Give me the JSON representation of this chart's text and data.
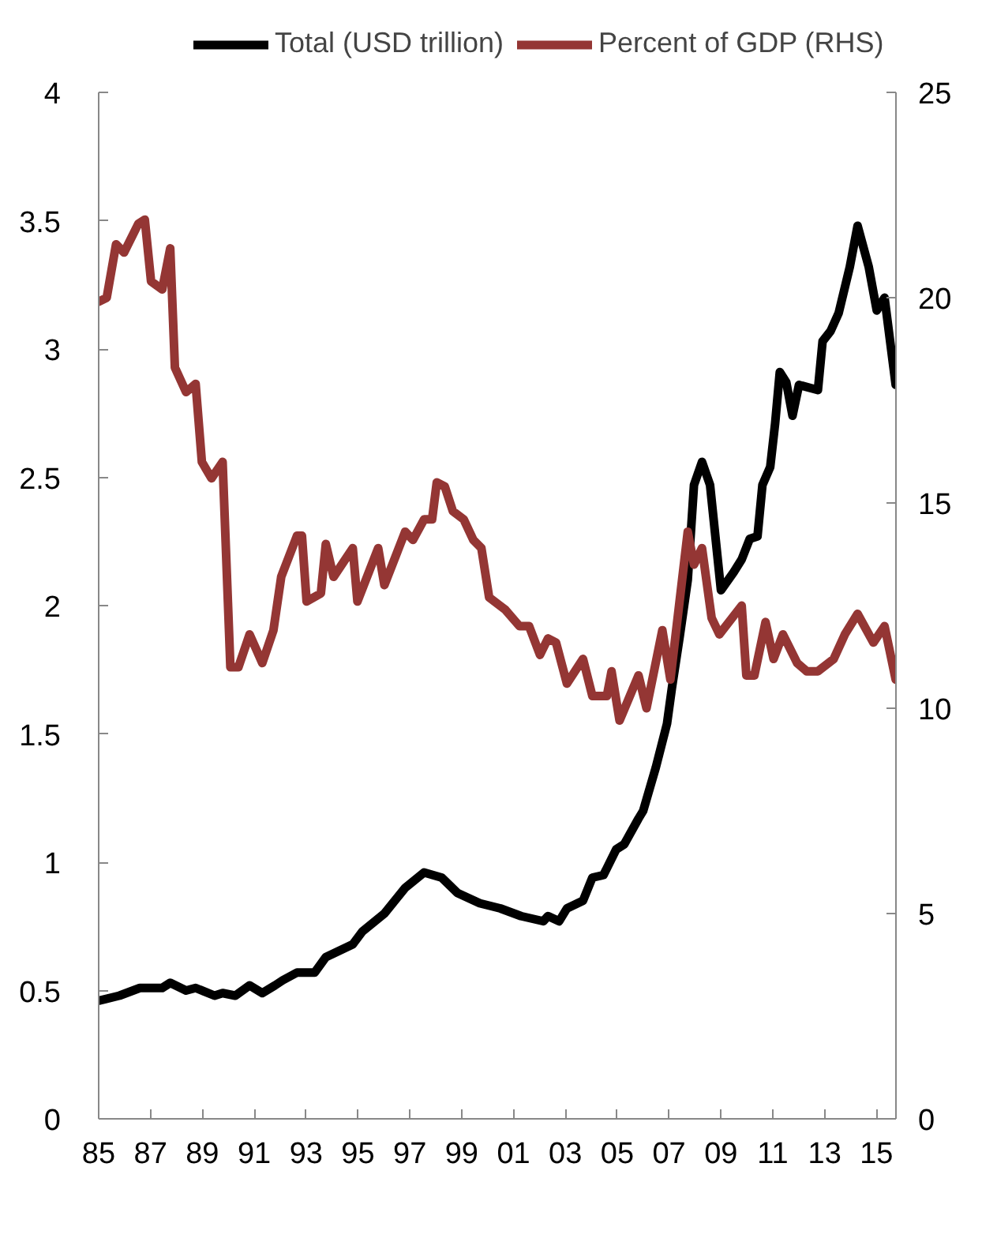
{
  "chart_data": {
    "type": "line",
    "xlim": [
      1985,
      2015.75
    ],
    "xticks": [
      {
        "value": 1985,
        "label": "85"
      },
      {
        "value": 1987,
        "label": "87"
      },
      {
        "value": 1989,
        "label": "89"
      },
      {
        "value": 1991,
        "label": "91"
      },
      {
        "value": 1993,
        "label": "93"
      },
      {
        "value": 1995,
        "label": "95"
      },
      {
        "value": 1997,
        "label": "97"
      },
      {
        "value": 1999,
        "label": "99"
      },
      {
        "value": 2001,
        "label": "01"
      },
      {
        "value": 2003,
        "label": "03"
      },
      {
        "value": 2005,
        "label": "05"
      },
      {
        "value": 2007,
        "label": "07"
      },
      {
        "value": 2009,
        "label": "09"
      },
      {
        "value": 2011,
        "label": "11"
      },
      {
        "value": 2013,
        "label": "13"
      },
      {
        "value": 2015,
        "label": "15"
      }
    ],
    "ylim": [
      0,
      4
    ],
    "yticks": [
      0,
      0.5,
      1,
      1.5,
      2,
      2.5,
      3,
      3.5,
      4
    ],
    "y2lim": [
      0,
      25
    ],
    "y2ticks": [
      0,
      5,
      10,
      15,
      20,
      25
    ],
    "grid": false,
    "legend": "top",
    "line_style": "solid",
    "marker": "none",
    "series": [
      {
        "name": "Total (USD trillion)",
        "color": "#000000",
        "x": [
          1985.0,
          1985.8,
          1986.59,
          1987.45,
          1987.76,
          1988.37,
          1988.74,
          1989.47,
          1989.78,
          1990.27,
          1990.82,
          1991.31,
          1991.8,
          1992.1,
          1992.65,
          1993.33,
          1993.76,
          1994.8,
          1995.17,
          1996.02,
          1996.82,
          1997.55,
          1998.23,
          1998.84,
          1999.7,
          2000.49,
          2001.29,
          2002.15,
          2002.33,
          2002.76,
          2003.06,
          2003.68,
          2004.04,
          2004.47,
          2004.96,
          2005.27,
          2005.82,
          2006.0,
          2006.49,
          2006.92,
          2007.11,
          2007.41,
          2007.72,
          2007.96,
          2008.27,
          2008.58,
          2009.0,
          2009.49,
          2009.8,
          2010.11,
          2010.41,
          2010.6,
          2010.9,
          2011.09,
          2011.27,
          2011.52,
          2011.76,
          2012.01,
          2012.74,
          2012.92,
          2013.23,
          2013.54,
          2013.97,
          2014.27,
          2014.7,
          2015.01,
          2015.31,
          2015.74
        ],
        "values": [
          0.46,
          0.48,
          0.51,
          0.51,
          0.53,
          0.5,
          0.51,
          0.48,
          0.49,
          0.48,
          0.52,
          0.49,
          0.52,
          0.54,
          0.57,
          0.57,
          0.63,
          0.68,
          0.73,
          0.8,
          0.9,
          0.96,
          0.94,
          0.88,
          0.84,
          0.82,
          0.79,
          0.77,
          0.79,
          0.77,
          0.82,
          0.85,
          0.94,
          0.95,
          1.05,
          1.07,
          1.17,
          1.2,
          1.37,
          1.54,
          1.68,
          1.88,
          2.1,
          2.47,
          2.56,
          2.47,
          2.06,
          2.13,
          2.18,
          2.26,
          2.27,
          2.47,
          2.54,
          2.71,
          2.91,
          2.87,
          2.74,
          2.86,
          2.84,
          3.03,
          3.07,
          3.14,
          3.32,
          3.48,
          3.32,
          3.15,
          3.2,
          2.86
        ]
      },
      {
        "name": "Percent of GDP (RHS)",
        "color": "#943634",
        "axis": "y2",
        "x": [
          1985.0,
          1985.31,
          1985.67,
          1985.98,
          1986.53,
          1986.78,
          1987.02,
          1987.45,
          1987.76,
          1987.94,
          1988.37,
          1988.74,
          1988.98,
          1989.35,
          1989.78,
          1990.08,
          1990.39,
          1990.82,
          1991.31,
          1991.74,
          1992.04,
          1992.65,
          1992.84,
          1993.02,
          1993.57,
          1993.76,
          1994.06,
          1994.8,
          1994.98,
          1995.78,
          1996.02,
          1996.82,
          1997.12,
          1997.55,
          1997.86,
          1998.04,
          1998.35,
          1998.66,
          1999.08,
          1999.45,
          1999.76,
          2000.06,
          2000.68,
          2001.23,
          2001.6,
          2002.02,
          2002.33,
          2002.64,
          2003.06,
          2003.68,
          2004.04,
          2004.6,
          2004.78,
          2005.09,
          2005.82,
          2006.13,
          2006.74,
          2007.05,
          2007.72,
          2007.96,
          2008.27,
          2008.64,
          2008.94,
          2009.8,
          2009.98,
          2010.29,
          2010.72,
          2011.03,
          2011.39,
          2011.94,
          2012.31,
          2012.74,
          2013.35,
          2013.78,
          2014.27,
          2014.88,
          2015.31,
          2015.74
        ],
        "values": [
          19.9,
          20.0,
          21.3,
          21.1,
          21.8,
          21.9,
          20.4,
          20.2,
          21.2,
          18.3,
          17.7,
          17.9,
          16.0,
          15.6,
          16.0,
          11.0,
          11.0,
          11.8,
          11.1,
          11.9,
          13.2,
          14.2,
          14.2,
          12.6,
          12.8,
          14.0,
          13.2,
          13.9,
          12.6,
          13.9,
          13.0,
          14.3,
          14.1,
          14.6,
          14.6,
          15.5,
          15.4,
          14.8,
          14.6,
          14.1,
          13.9,
          12.7,
          12.4,
          12.0,
          12.0,
          11.3,
          11.7,
          11.6,
          10.6,
          11.2,
          10.3,
          10.3,
          10.9,
          9.7,
          10.8,
          10.0,
          11.9,
          10.7,
          14.3,
          13.5,
          13.9,
          12.2,
          11.8,
          12.5,
          10.8,
          10.8,
          12.1,
          11.2,
          11.8,
          11.1,
          10.9,
          10.9,
          11.2,
          11.8,
          12.3,
          11.6,
          12.0,
          10.7
        ]
      }
    ]
  }
}
